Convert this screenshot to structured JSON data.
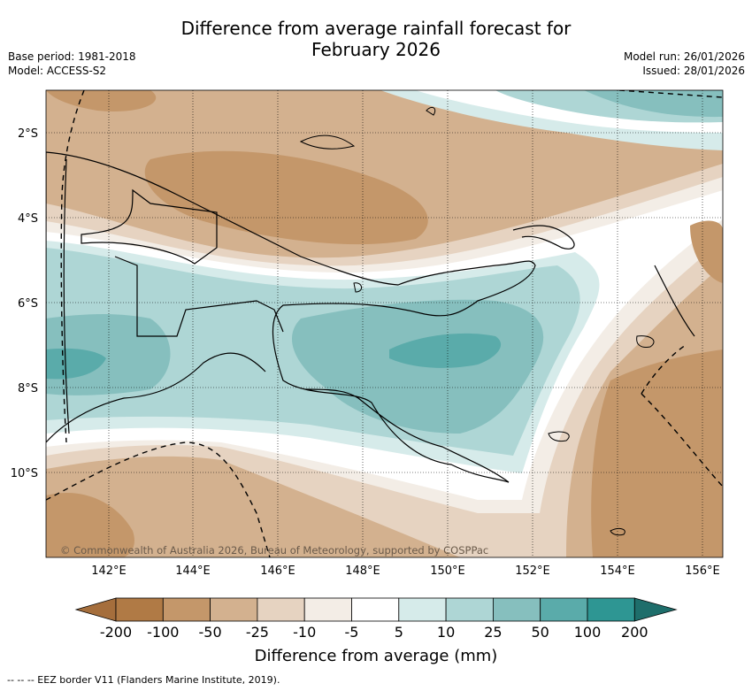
{
  "header": {
    "title_line1": "Difference from average rainfall forecast for",
    "title_line2": "February 2026",
    "base_period": "Base period: 1981-2018",
    "model": "Model: ACCESS-S2",
    "model_run": "Model run: 26/01/2026",
    "issued": "Issued: 28/01/2026"
  },
  "map": {
    "lat_labels": [
      "2°S",
      "4°S",
      "6°S",
      "8°S",
      "10°S"
    ],
    "lon_labels": [
      "142°E",
      "144°E",
      "146°E",
      "148°E",
      "150°E",
      "152°E",
      "154°E",
      "156°E"
    ],
    "copyright": "© Commonwealth of Australia 2026, Bureau of Meteorology, supported by COSPPac",
    "colors": {
      "ocean_dark_green": "#5aabaa",
      "mid_green": "#86bfbe",
      "light_green": "#aed6d5",
      "pale_green": "#d6ebea",
      "pale_brown": "#f3ede6",
      "light_brown": "#e6d3c1",
      "mid_brown": "#d3b18f",
      "dark_brown": "#c4976a"
    }
  },
  "colorbar": {
    "ticks": [
      "-200",
      "-100",
      "-50",
      "-25",
      "-10",
      "-5",
      "5",
      "10",
      "25",
      "50",
      "100",
      "200"
    ],
    "colors": [
      "#a56e3c",
      "#b07a45",
      "#c4976a",
      "#d3b18f",
      "#e6d3c1",
      "#f3ede6",
      "#ffffff",
      "#d6ebea",
      "#aed6d5",
      "#86bfbe",
      "#5aabaa",
      "#2e9693",
      "#1e6e6b"
    ],
    "label": "Difference from average (mm)"
  },
  "legend": {
    "eez": "--  --  -- EEZ border V11 (Flanders Marine Institute, 2019)."
  }
}
